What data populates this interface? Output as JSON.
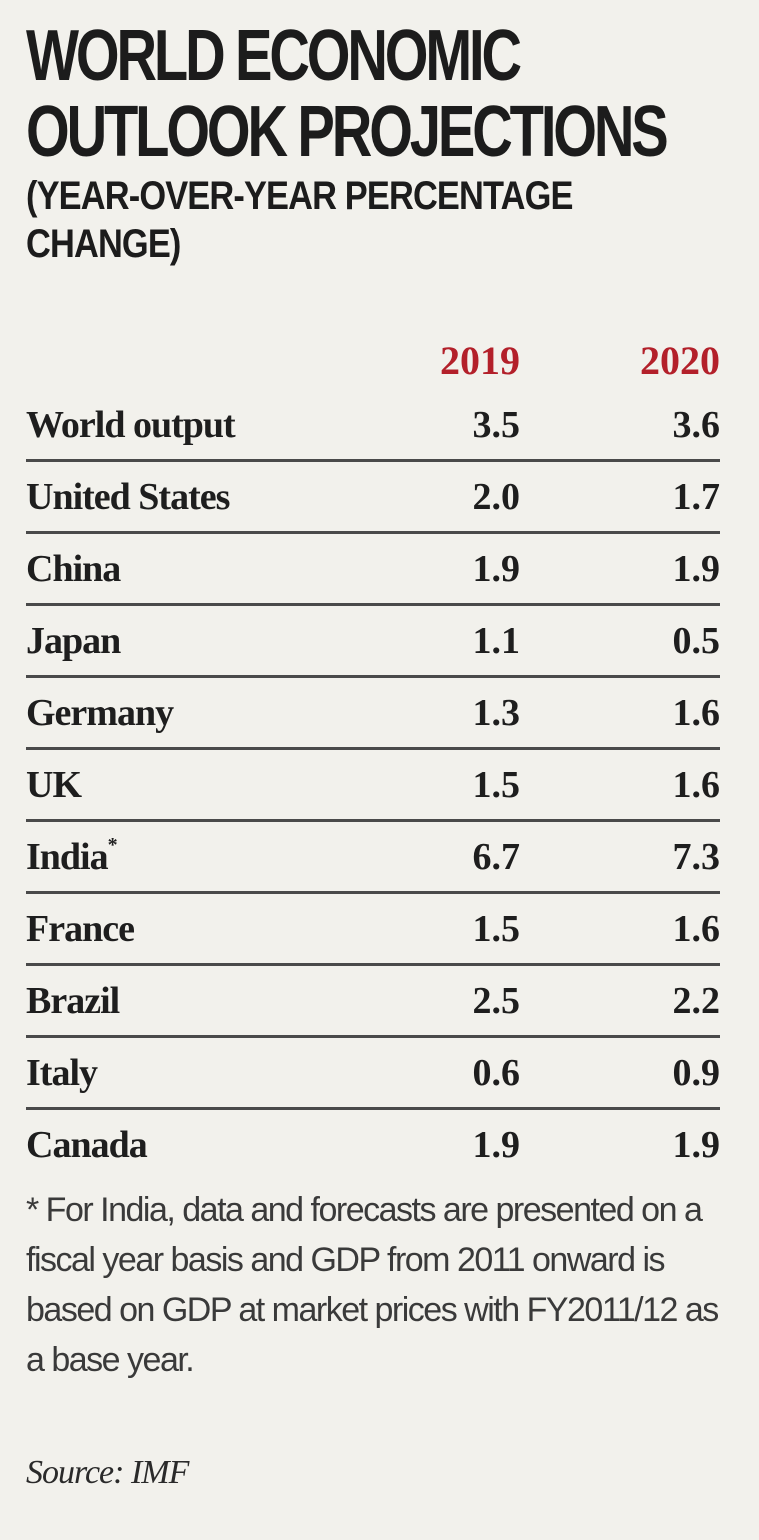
{
  "title": "WORLD ECONOMIC OUTLOOK PROJECTIONS",
  "subtitle": "(YEAR-OVER-YEAR PERCENTAGE CHANGE)",
  "colors": {
    "year_header": "#b3202a",
    "text": "#1e1e1e",
    "background": "#f2f1ec",
    "rule": "#4a4a4a"
  },
  "chart_data": {
    "type": "table",
    "title": "WORLD ECONOMIC OUTLOOK PROJECTIONS",
    "subtitle": "(YEAR-OVER-YEAR PERCENTAGE CHANGE)",
    "columns": [
      "2019",
      "2020"
    ],
    "rows": [
      {
        "label": "World output",
        "note": "",
        "values": [
          "3.5",
          "3.6"
        ]
      },
      {
        "label": "United States",
        "note": "",
        "values": [
          "2.0",
          "1.7"
        ]
      },
      {
        "label": "China",
        "note": "",
        "values": [
          "1.9",
          "1.9"
        ]
      },
      {
        "label": "Japan",
        "note": "",
        "values": [
          "1.1",
          "0.5"
        ]
      },
      {
        "label": "Germany",
        "note": "",
        "values": [
          "1.3",
          "1.6"
        ]
      },
      {
        "label": "UK",
        "note": "",
        "values": [
          "1.5",
          "1.6"
        ]
      },
      {
        "label": "India",
        "note": "*",
        "values": [
          "6.7",
          "7.3"
        ]
      },
      {
        "label": "France",
        "note": "",
        "values": [
          "1.5",
          "1.6"
        ]
      },
      {
        "label": "Brazil",
        "note": "",
        "values": [
          "2.5",
          "2.2"
        ]
      },
      {
        "label": "Italy",
        "note": "",
        "values": [
          "0.6",
          "0.9"
        ]
      },
      {
        "label": "Canada",
        "note": "",
        "values": [
          "1.9",
          "1.9"
        ]
      }
    ],
    "footnote": "* For India, data and forecasts are presented on a fiscal year basis and GDP from 2011 onward is based on GDP at market prices with FY2011/12 as a base year.",
    "source": "Source: IMF"
  }
}
